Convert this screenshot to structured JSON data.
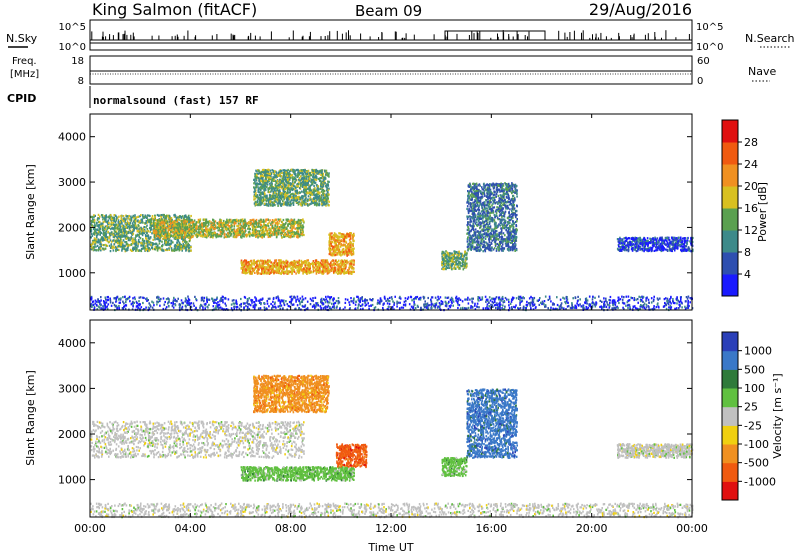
{
  "header": {
    "station": "King Salmon (fitACF)",
    "beam": "Beam 09",
    "date": "29/Aug/2016"
  },
  "strips": {
    "nsky_label": "N.Sky",
    "nsky_ticks": [
      "10^5",
      "10^0"
    ],
    "nsearch_label": "N.Search",
    "nsearch_ticks": [
      "10^5",
      "10^0"
    ],
    "freq_label_1": "Freq.",
    "freq_label_2": "[MHz]",
    "freq_ticks": [
      "18",
      "8"
    ],
    "nave_label": "Nave",
    "nave_ticks": [
      "60",
      "0"
    ],
    "cpid_label": "CPID",
    "cpid_text": "normalsound (fast) 157 RF"
  },
  "axes": {
    "ylabel": "Slant Range [km]",
    "xlabel": "Time UT",
    "y_ticks": [
      "1000",
      "2000",
      "3000",
      "4000"
    ],
    "x_ticks": [
      "00:00",
      "04:00",
      "08:00",
      "12:00",
      "16:00",
      "20:00",
      "00:00"
    ]
  },
  "power_bar": {
    "label": "Power [dB]",
    "ticks": [
      "4",
      "8",
      "12",
      "16",
      "20",
      "24",
      "28"
    ],
    "colors": [
      "#1a1aff",
      "#2e4fb0",
      "#3d8a8a",
      "#5aa050",
      "#d8c020",
      "#f09020",
      "#f05a10",
      "#e01010"
    ]
  },
  "velocity_bar": {
    "label": "Velocity [m s⁻¹]",
    "ticks": [
      "1000",
      "500",
      "100",
      "25",
      "-25",
      "-100",
      "-500",
      "-1000"
    ],
    "colors": [
      "#2a3fb8",
      "#3a78c8",
      "#2f7a3a",
      "#60c040",
      "#c0c0c0",
      "#f0d010",
      "#f09020",
      "#f05a10",
      "#e01010"
    ]
  },
  "chart_data": [
    {
      "type": "heatmap",
      "quantity": "Power",
      "x_range": [
        "00:00",
        "24:00"
      ],
      "y_range_km": [
        180,
        4500
      ],
      "color_range_dB": [
        0,
        32
      ],
      "regions": [
        {
          "t_start": 0.0,
          "t_end": 4.0,
          "r_min": 1500,
          "r_max": 2300,
          "value": 12
        },
        {
          "t_start": 2.5,
          "t_end": 8.5,
          "r_min": 1800,
          "r_max": 2200,
          "value": 16
        },
        {
          "t_start": 6.5,
          "t_end": 9.5,
          "r_min": 2500,
          "r_max": 3300,
          "value": 12
        },
        {
          "t_start": 6.0,
          "t_end": 10.5,
          "r_min": 1000,
          "r_max": 1300,
          "value": 22
        },
        {
          "t_start": 9.5,
          "t_end": 10.5,
          "r_min": 1400,
          "r_max": 1900,
          "value": 20
        },
        {
          "t_start": 14.0,
          "t_end": 15.0,
          "r_min": 1100,
          "r_max": 1500,
          "value": 12
        },
        {
          "t_start": 15.0,
          "t_end": 17.0,
          "r_min": 1500,
          "r_max": 3000,
          "value": 10
        },
        {
          "t_start": 21.0,
          "t_end": 24.0,
          "r_min": 1500,
          "r_max": 1800,
          "value": 6
        },
        {
          "t_start": 0.0,
          "t_end": 24.0,
          "r_min": 200,
          "r_max": 500,
          "value": 6
        }
      ]
    },
    {
      "type": "heatmap",
      "quantity": "Velocity",
      "x_range": [
        "00:00",
        "24:00"
      ],
      "y_range_km": [
        180,
        4500
      ],
      "color_range_ms": [
        -1000,
        1000
      ],
      "regions": [
        {
          "t_start": 0.0,
          "t_end": 8.5,
          "r_min": 1500,
          "r_max": 2300,
          "value": 0
        },
        {
          "t_start": 6.5,
          "t_end": 9.5,
          "r_min": 2500,
          "r_max": 3300,
          "value": -300
        },
        {
          "t_start": 6.0,
          "t_end": 10.5,
          "r_min": 1000,
          "r_max": 1300,
          "value": 60
        },
        {
          "t_start": 9.8,
          "t_end": 11.0,
          "r_min": 1300,
          "r_max": 1800,
          "value": -600
        },
        {
          "t_start": 14.0,
          "t_end": 15.0,
          "r_min": 1100,
          "r_max": 1500,
          "value": 60
        },
        {
          "t_start": 15.0,
          "t_end": 17.0,
          "r_min": 1500,
          "r_max": 3000,
          "value": 700
        },
        {
          "t_start": 21.0,
          "t_end": 24.0,
          "r_min": 1500,
          "r_max": 1800,
          "value": 0
        },
        {
          "t_start": 0.0,
          "t_end": 24.0,
          "r_min": 200,
          "r_max": 500,
          "value": 0
        }
      ]
    }
  ]
}
